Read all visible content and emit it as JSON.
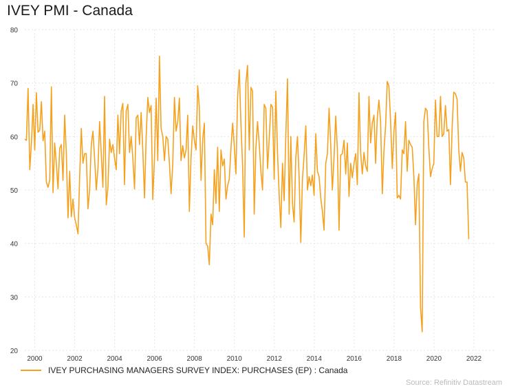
{
  "colors": {
    "series": "#f5a11d",
    "grid": "#e4e4e4"
  },
  "chart_data": {
    "type": "line",
    "title": "IVEY PMI - Canada",
    "xlabel": "",
    "ylabel": "",
    "ylim": [
      20,
      80
    ],
    "xlim": [
      1999.5,
      2023.0
    ],
    "y_ticks": [
      20,
      30,
      40,
      50,
      60,
      70,
      80
    ],
    "x_ticks": [
      2000,
      2002,
      2004,
      2006,
      2008,
      2010,
      2012,
      2014,
      2016,
      2018,
      2020,
      2022
    ],
    "grid": true,
    "legend_position": "bottom-left",
    "source": "Source: Refinitiv Datastream",
    "series": [
      {
        "name": "IVEY PURCHASING MANAGERS SURVEY INDEX: PURCHASES (EP) : Canada",
        "x_start": 1999.5,
        "x_step": 0.0833,
        "values": [
          59.5,
          59.3,
          69.0,
          53.8,
          58.8,
          66.0,
          57.5,
          68.2,
          60.8,
          61.2,
          66.5,
          59.2,
          61.0,
          51.5,
          50.5,
          51.8,
          69.3,
          49.5,
          58.8,
          55.0,
          50.2,
          57.8,
          58.5,
          51.8,
          64.0,
          57.0,
          44.8,
          53.5,
          45.0,
          48.3,
          44.8,
          43.5,
          41.8,
          52.5,
          61.5,
          55.0,
          56.8,
          56.8,
          46.5,
          50.0,
          58.5,
          61.0,
          56.0,
          50.0,
          54.0,
          62.8,
          56.8,
          50.5,
          67.5,
          47.2,
          50.5,
          59.5,
          57.0,
          58.5,
          56.0,
          53.8,
          64.0,
          56.8,
          64.8,
          66.2,
          51.0,
          64.8,
          66.0,
          57.0,
          60.0,
          56.0,
          50.2,
          63.5,
          64.0,
          58.5,
          64.5,
          57.5,
          48.5,
          60.0,
          67.3,
          64.5,
          65.8,
          48.2,
          56.0,
          67.2,
          55.5,
          75.0,
          61.5,
          60.0,
          55.5,
          60.0,
          59.5,
          55.0,
          49.3,
          55.0,
          67.3,
          61.0,
          62.8,
          67.2,
          55.5,
          58.3,
          56.0,
          57.5,
          64.0,
          46.0,
          56.0,
          62.0,
          59.3,
          57.5,
          69.5,
          65.5,
          51.8,
          59.5,
          62.5,
          40.0,
          39.5,
          36.0,
          45.5,
          43.5,
          53.8,
          47.5,
          58.0,
          46.0,
          57.5,
          54.5,
          55.8,
          48.3,
          50.8,
          52.0,
          57.8,
          62.5,
          58.3,
          53.0,
          67.3,
          72.5,
          62.3,
          54.5,
          41.2,
          70.0,
          73.3,
          57.5,
          69.2,
          68.5,
          45.5,
          57.8,
          62.8,
          58.5,
          53.5,
          50.0,
          66.0,
          65.3,
          54.0,
          59.5,
          66.0,
          65.5,
          52.0,
          68.5,
          56.8,
          49.0,
          43.0,
          55.0,
          48.0,
          60.0,
          70.8,
          45.5,
          60.0,
          47.5,
          44.0,
          56.0,
          60.0,
          52.3,
          40.2,
          52.0,
          56.5,
          62.0,
          50.0,
          52.5,
          50.8,
          52.8,
          49.0,
          60.5,
          53.5,
          52.5,
          48.5,
          46.0,
          42.5,
          55.0,
          56.8,
          65.3,
          58.5,
          50.0,
          56.0,
          63.8,
          57.5,
          42.5,
          56.5,
          56.8,
          59.3,
          53.0,
          58.8,
          48.8,
          55.0,
          52.3,
          55.0,
          56.8,
          51.0,
          68.2,
          57.0,
          53.0,
          57.0,
          54.5,
          53.5,
          67.5,
          58.8,
          62.5,
          64.0,
          55.0,
          63.5,
          66.8,
          62.8,
          49.3,
          57.3,
          62.0,
          70.3,
          69.5,
          63.0,
          54.0,
          61.0,
          64.5,
          48.5,
          49.0,
          48.3,
          57.5,
          56.8,
          62.8,
          53.5,
          59.3,
          58.5,
          58.0,
          52.5,
          43.5,
          51.0,
          53.0,
          28.0,
          23.5,
          62.8,
          65.3,
          64.8,
          58.0,
          52.5,
          54.0,
          55.0,
          66.8,
          60.0,
          60.0,
          67.5,
          60.0,
          60.5,
          65.8,
          61.0,
          61.3,
          51.0,
          61.5,
          68.3,
          68.0,
          67.0,
          57.5,
          53.5,
          57.0,
          56.0,
          51.5,
          51.5,
          40.8
        ]
      }
    ]
  }
}
